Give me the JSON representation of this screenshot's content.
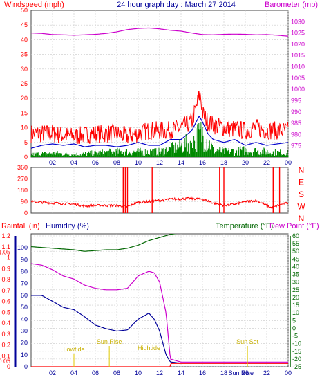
{
  "header": {
    "left": "Windspeed (mph)",
    "center": "24 hour graph day : March 27 2014",
    "right": "Barometer (mb)"
  },
  "bottom_header": {
    "rainfall": "Rainfall (in)",
    "humidity": "Humidity (%)",
    "temperature": "Temperature (°F)",
    "dewpoint": "Dew Point (°F)"
  },
  "colors": {
    "wind_red": "#ff0000",
    "avg_blue": "#0000cc",
    "green": "#008800",
    "baro_magenta": "#cc00cc",
    "humidity_blue": "#000099",
    "dew_magenta": "#cc00cc",
    "temp_green": "#006600",
    "rain_red": "#ff0000",
    "event_yellow": "#e0c800"
  },
  "chart_data": [
    {
      "type": "line",
      "panel": "wind-barometer",
      "x_tick_labels": [
        "02",
        "04",
        "06",
        "08",
        "10",
        "12",
        "14",
        "16",
        "18",
        "20",
        "22",
        "00"
      ],
      "left_axis": {
        "ylim": [
          0,
          50
        ],
        "ticks": [
          0,
          5,
          10,
          15,
          20,
          25,
          30,
          35,
          40,
          45,
          50
        ]
      },
      "right_axis": {
        "ylim": [
          970,
          1035
        ],
        "ticks": [
          975,
          980,
          985,
          990,
          995,
          1000,
          1005,
          1010,
          1015,
          1020,
          1025,
          1030
        ]
      },
      "series": [
        {
          "color_key": "wind_red",
          "axis": "left",
          "style": "noisy",
          "spread": 4,
          "points": [
            [
              0,
              8
            ],
            [
              2,
              8
            ],
            [
              4,
              7
            ],
            [
              6,
              8
            ],
            [
              8,
              8
            ],
            [
              9,
              7
            ],
            [
              10,
              8
            ],
            [
              11,
              9
            ],
            [
              12,
              9
            ],
            [
              13,
              9
            ],
            [
              14,
              10
            ],
            [
              15,
              12
            ],
            [
              15.5,
              18
            ],
            [
              15.8,
              22
            ],
            [
              16,
              15
            ],
            [
              16.5,
              12
            ],
            [
              17,
              11
            ],
            [
              18,
              10
            ],
            [
              20,
              9
            ],
            [
              21,
              10
            ],
            [
              22,
              9
            ],
            [
              24,
              9
            ]
          ]
        },
        {
          "color_key": "avg_blue",
          "axis": "left",
          "style": "smooth",
          "points": [
            [
              0,
              3
            ],
            [
              1,
              4
            ],
            [
              2,
              4.5
            ],
            [
              3,
              4
            ],
            [
              4,
              4.5
            ],
            [
              5,
              3.5
            ],
            [
              6,
              4
            ],
            [
              7,
              4
            ],
            [
              8,
              3.5
            ],
            [
              9,
              4
            ],
            [
              10,
              5
            ],
            [
              11,
              4
            ],
            [
              12,
              4
            ],
            [
              13,
              6
            ],
            [
              14,
              6
            ],
            [
              15,
              9
            ],
            [
              15.7,
              14
            ],
            [
              16,
              12
            ],
            [
              16.5,
              8
            ],
            [
              17,
              6
            ],
            [
              18,
              5
            ],
            [
              19,
              6
            ],
            [
              20,
              4
            ],
            [
              21,
              5
            ],
            [
              22,
              4
            ],
            [
              23,
              4.5
            ],
            [
              24,
              5
            ]
          ]
        },
        {
          "color_key": "green",
          "axis": "left",
          "style": "spiky",
          "points": [
            [
              0,
              1
            ],
            [
              2,
              1.5
            ],
            [
              4,
              1
            ],
            [
              6,
              1.5
            ],
            [
              8,
              2
            ],
            [
              10,
              2
            ],
            [
              12,
              2
            ],
            [
              13,
              3
            ],
            [
              14,
              4
            ],
            [
              15,
              6
            ],
            [
              16,
              9
            ],
            [
              16.5,
              6
            ],
            [
              17,
              3
            ],
            [
              18,
              2
            ],
            [
              20,
              2.5
            ],
            [
              22,
              2
            ],
            [
              24,
              1.5
            ]
          ]
        },
        {
          "color_key": "baro_magenta",
          "axis": "right",
          "style": "smooth",
          "points": [
            [
              0,
              1025
            ],
            [
              1,
              1024.8
            ],
            [
              2,
              1024.3
            ],
            [
              3,
              1024.2
            ],
            [
              4,
              1024
            ],
            [
              5,
              1024.2
            ],
            [
              6,
              1024.4
            ],
            [
              7,
              1024.8
            ],
            [
              8,
              1025.5
            ],
            [
              9,
              1026.5
            ],
            [
              10,
              1027
            ],
            [
              11,
              1027.2
            ],
            [
              12,
              1026.8
            ],
            [
              13,
              1026.2
            ],
            [
              14,
              1025.8
            ],
            [
              15,
              1025
            ],
            [
              16,
              1024.3
            ],
            [
              17,
              1024.2
            ],
            [
              18,
              1024.4
            ],
            [
              19,
              1024.5
            ],
            [
              20,
              1024.4
            ],
            [
              21,
              1024.2
            ],
            [
              22,
              1024.3
            ],
            [
              23,
              1024
            ],
            [
              24,
              1023.6
            ]
          ]
        }
      ]
    },
    {
      "type": "line",
      "panel": "wind-direction",
      "left_axis": {
        "ylim": [
          0,
          360
        ],
        "ticks": [
          0,
          90,
          180,
          270,
          360
        ]
      },
      "right_axis_labels": [
        "N",
        "W",
        "S",
        "E",
        "N"
      ],
      "series": [
        {
          "color_key": "wind_red",
          "axis": "left",
          "style": "noisy",
          "spread": 12,
          "points": [
            [
              0,
              90
            ],
            [
              2,
              80
            ],
            [
              4,
              70
            ],
            [
              5,
              55
            ],
            [
              6,
              60
            ],
            [
              8,
              60
            ],
            [
              9,
              50
            ],
            [
              10,
              85
            ],
            [
              11,
              90
            ],
            [
              12,
              100
            ],
            [
              13,
              110
            ],
            [
              15,
              115
            ],
            [
              16,
              110
            ],
            [
              17,
              80
            ],
            [
              18,
              60
            ],
            [
              19,
              70
            ],
            [
              20,
              90
            ],
            [
              21,
              100
            ],
            [
              22,
              60
            ],
            [
              22.5,
              40
            ],
            [
              23,
              60
            ],
            [
              24,
              80
            ]
          ]
        },
        {
          "color_key": "wind_red",
          "axis": "left",
          "style": "bars",
          "points": [
            [
              8.6,
              360
            ],
            [
              8.8,
              360
            ],
            [
              9.0,
              360
            ],
            [
              11.3,
              360
            ],
            [
              17.6,
              360
            ],
            [
              18.0,
              360
            ],
            [
              22.6,
              360
            ],
            [
              23.2,
              360
            ]
          ]
        }
      ]
    },
    {
      "type": "line",
      "panel": "humidity-temperature",
      "x_tick_labels": [
        "02",
        "04",
        "06",
        "08",
        "10",
        "12",
        "14",
        "16",
        "18",
        "Sun Rise",
        "20",
        "22",
        "00"
      ],
      "left_axis": {
        "ylim": [
          0,
          1.2
        ],
        "ticks": [
          0,
          0.05,
          0.1,
          0.2,
          0.3,
          0.4,
          0.5,
          0.6,
          0.7,
          0.8,
          0.9,
          1,
          1.05,
          1.1,
          1.2
        ]
      },
      "humidity_axis": {
        "ylim": [
          0,
          110
        ],
        "ticks": [
          0,
          10,
          20,
          30,
          40,
          50,
          60,
          70,
          80,
          90,
          100
        ]
      },
      "right_axis": {
        "ylim": [
          -25,
          60
        ],
        "ticks": [
          -25,
          -20,
          -15,
          -10,
          -5,
          0,
          5,
          10,
          15,
          20,
          25,
          30,
          35,
          40,
          45,
          50,
          55,
          60
        ]
      },
      "series": [
        {
          "color_key": "temp_green",
          "axis": "right",
          "style": "smooth",
          "points": [
            [
              0,
              53
            ],
            [
              1,
              52.5
            ],
            [
              2,
              52
            ],
            [
              3,
              51.5
            ],
            [
              4,
              51
            ],
            [
              5,
              50
            ],
            [
              6,
              50.5
            ],
            [
              7,
              51
            ],
            [
              8,
              51
            ],
            [
              9,
              52
            ],
            [
              10,
              54
            ],
            [
              11,
              57
            ],
            [
              12,
              59
            ],
            [
              13,
              61
            ],
            [
              14,
              62
            ]
          ]
        },
        {
          "color_key": "dew_magenta",
          "axis": "right",
          "style": "smooth",
          "points": [
            [
              0,
              42
            ],
            [
              1,
              41
            ],
            [
              2,
              38
            ],
            [
              3,
              34
            ],
            [
              4,
              32
            ],
            [
              5,
              28
            ],
            [
              6,
              26
            ],
            [
              7,
              25
            ],
            [
              8,
              25
            ],
            [
              9,
              26
            ],
            [
              10,
              34
            ],
            [
              11,
              37
            ],
            [
              11.5,
              36
            ],
            [
              12,
              30
            ],
            [
              12.6,
              10
            ],
            [
              13,
              -20
            ],
            [
              14,
              -22
            ],
            [
              16,
              -22
            ],
            [
              18,
              -22
            ],
            [
              20,
              -22
            ],
            [
              22,
              -22
            ],
            [
              24,
              -22
            ]
          ]
        },
        {
          "color_key": "humidity_blue",
          "axis": "humidity",
          "style": "smooth",
          "points": [
            [
              0,
              60
            ],
            [
              1,
              60
            ],
            [
              2,
              55
            ],
            [
              3,
              50
            ],
            [
              4,
              48
            ],
            [
              5,
              42
            ],
            [
              6,
              35
            ],
            [
              7,
              32
            ],
            [
              8,
              30
            ],
            [
              9,
              31
            ],
            [
              10,
              40
            ],
            [
              11,
              45
            ],
            [
              11.5,
              40
            ],
            [
              12,
              30
            ],
            [
              12.6,
              10
            ],
            [
              13,
              4
            ],
            [
              14,
              3
            ],
            [
              16,
              3
            ],
            [
              18,
              3
            ],
            [
              20,
              3
            ],
            [
              22,
              3
            ],
            [
              24,
              3
            ]
          ]
        },
        {
          "color_key": "rain_red",
          "axis": "left",
          "style": "smooth",
          "points": [
            [
              0,
              0
            ],
            [
              13,
              0
            ],
            [
              13.05,
              0.03
            ],
            [
              24,
              0.03
            ]
          ]
        }
      ],
      "annotations": [
        {
          "label": "Lowtide",
          "x": 4
        },
        {
          "label": "Sun Rise",
          "x": 7.3
        },
        {
          "label": "Hightide",
          "x": 11
        },
        {
          "label": "Sun Set",
          "x": 20.2
        }
      ]
    }
  ]
}
